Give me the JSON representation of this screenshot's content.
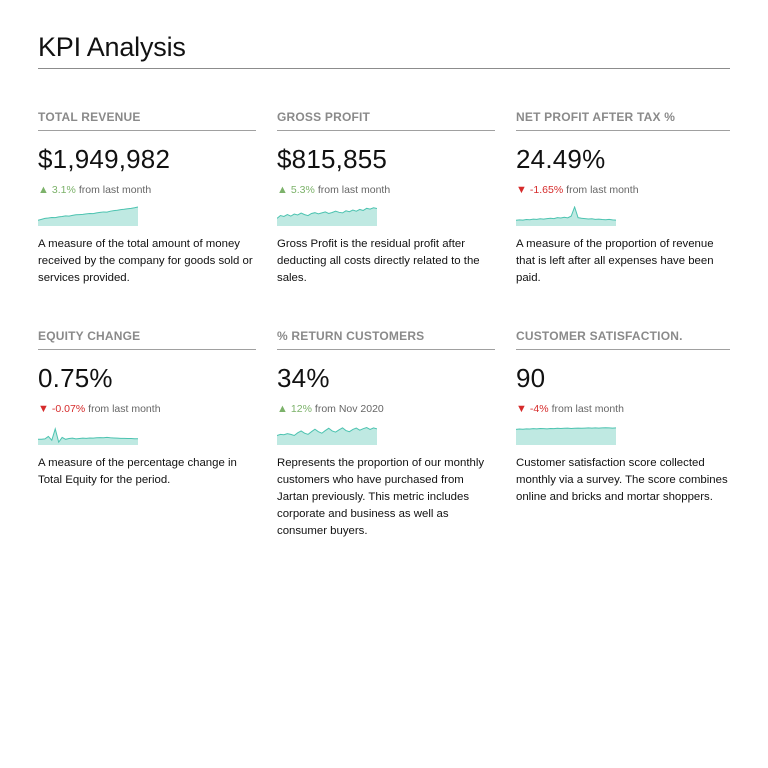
{
  "page": {
    "title": "KPI Analysis"
  },
  "colors": {
    "spark_fill": "#bfe9e2",
    "spark_stroke": "#4cc3b0",
    "up": "#7cb26a",
    "down": "#d62b2b"
  },
  "kpis": [
    {
      "label": "TOTAL REVENUE",
      "value": "$1,949,982",
      "direction": "up",
      "arrow": "▲",
      "delta": "3.1%",
      "comparison": "from last month",
      "sparkline": [
        3,
        3.5,
        4,
        4.2,
        4.5,
        4.4,
        4.8,
        5,
        5.3,
        5.2,
        5.6,
        5.9,
        6,
        6.1,
        6.4,
        6.6,
        6.5,
        6.9,
        7.2,
        7.4,
        7.3,
        7.8,
        8.1,
        8.3,
        8.6,
        8.8,
        9.1,
        9.3,
        9.6,
        10
      ],
      "description": "A measure of the total amount of money received by the company for goods sold or services provided."
    },
    {
      "label": "GROSS PROFIT",
      "value": "$815,855",
      "direction": "up",
      "arrow": "▲",
      "delta": "5.3%",
      "comparison": "from last month",
      "sparkline": [
        4,
        5.5,
        5,
        6,
        5.2,
        6.3,
        5.8,
        6.8,
        6,
        5.5,
        6.6,
        7,
        6.4,
        6.9,
        7.4,
        6.6,
        7.1,
        7.8,
        7.2,
        6.9,
        8,
        7.5,
        8.4,
        7.8,
        8.7,
        8.2,
        9.3,
        8.9,
        9.6,
        9.2
      ],
      "description": "Gross Profit is the residual profit after deducting all costs directly related to the sales."
    },
    {
      "label": "NET PROFIT AFTER TAX %",
      "value": "24.49%",
      "direction": "down",
      "arrow": "▼",
      "delta": "-1.65%",
      "comparison": "from last month",
      "sparkline": [
        3,
        3.2,
        3.1,
        3.4,
        3.3,
        3.6,
        3.5,
        3.8,
        3.6,
        3.9,
        4.1,
        3.9,
        4.4,
        4.2,
        4.6,
        4.3,
        5.2,
        10,
        4.4,
        4.1,
        3.9,
        3.7,
        3.8,
        3.5,
        3.6,
        3.4,
        3.3,
        3.5,
        3.2,
        3.1
      ],
      "description": "A measure of the proportion of revenue that is left after all expenses have been paid."
    },
    {
      "label": "EQUITY CHANGE",
      "value": "0.75%",
      "direction": "down",
      "arrow": "▼",
      "delta": "-0.07%",
      "comparison": "from last month",
      "sparkline": [
        3,
        3,
        3.2,
        4.5,
        2.5,
        8.5,
        1.5,
        4,
        3,
        3.4,
        3.6,
        3.2,
        3.4,
        3.6,
        3.5,
        3.7,
        3.6,
        3.8,
        3.9,
        3.8,
        4,
        3.8,
        3.7,
        3.6,
        3.5,
        3.5,
        3.4,
        3.4,
        3.3,
        3.3
      ],
      "description": "A measure of the percentage change in Total Equity for the period."
    },
    {
      "label": "% RETURN CUSTOMERS",
      "value": "34%",
      "direction": "up",
      "arrow": "▲",
      "delta": "12%",
      "comparison": "from Nov 2020",
      "sparkline": [
        5,
        5.6,
        5.4,
        6,
        5.6,
        5,
        6.4,
        7.4,
        6.2,
        5.6,
        7,
        8.3,
        7,
        6.2,
        7.6,
        8.8,
        7.4,
        6.8,
        8,
        9,
        7.6,
        7,
        8.2,
        8.9,
        7.8,
        8.6,
        9.2,
        8.2,
        9,
        8.5
      ],
      "description": "Represents the proportion of our monthly customers who have purchased from Jartan previously. This metric includes corporate and business as well as consumer buyers."
    },
    {
      "label": "CUSTOMER SATISFACTION.",
      "value": "90",
      "direction": "down",
      "arrow": "▼",
      "delta": "-4%",
      "comparison": "from last month",
      "sparkline": [
        8.2,
        8.4,
        8.3,
        8.5,
        8.4,
        8.6,
        8.5,
        8.7,
        8.6,
        8.5,
        8.7,
        8.6,
        8.8,
        8.7,
        8.8,
        8.9,
        8.7,
        8.8,
        8.9,
        8.8,
        8.9,
        9,
        8.9,
        9,
        8.9,
        9,
        9.1,
        9,
        8.9,
        9
      ],
      "description": "Customer satisfaction score collected monthly via a survey. The score combines online and bricks and mortar shoppers."
    }
  ]
}
